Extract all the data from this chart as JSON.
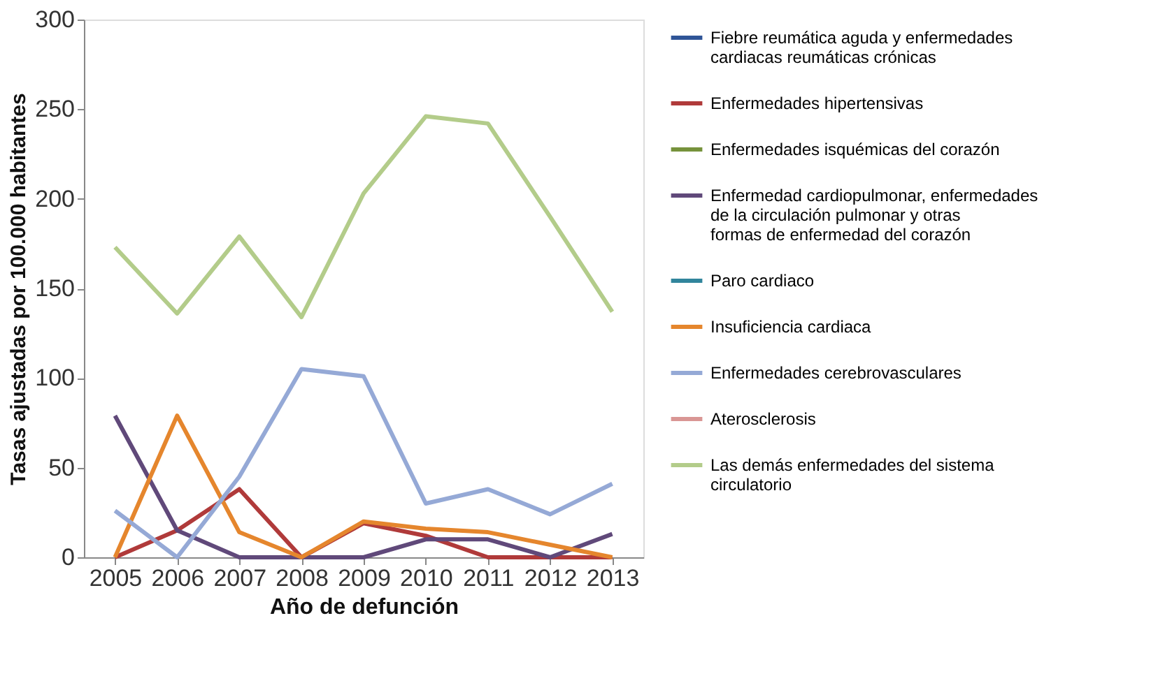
{
  "chart_data": {
    "type": "line",
    "xlabel": "Año de defunción",
    "ylabel": "Tasas ajustadas por 100.000 habitantes",
    "categories": [
      "2005",
      "2006",
      "2007",
      "2008",
      "2009",
      "2010",
      "2011",
      "2012",
      "2013"
    ],
    "ylim": [
      0,
      300
    ],
    "yticks": [
      0,
      50,
      100,
      150,
      200,
      250,
      300
    ],
    "grid": false,
    "legend": "right",
    "series": [
      {
        "name": "Fiebre reumática aguda y enfermedades cardiacas reumáticas crónicas",
        "color": "#2f5597",
        "values": [
          null,
          null,
          null,
          null,
          null,
          null,
          null,
          null,
          null
        ]
      },
      {
        "name": "Enfermedades hipertensivas",
        "color": "#b03a3a",
        "values": [
          0,
          15,
          38,
          0,
          19,
          12,
          0,
          0,
          0
        ]
      },
      {
        "name": "Enfermedades isquémicas del corazón",
        "color": "#76923c",
        "values": [
          null,
          null,
          null,
          null,
          null,
          null,
          null,
          null,
          null
        ]
      },
      {
        "name": "Enfermedad cardiopulmonar, enfermedades de la circulación pulmonar y otras formas de enfermedad del corazón",
        "color": "#60497a",
        "values": [
          79,
          15,
          0,
          0,
          0,
          10,
          10,
          0,
          13
        ]
      },
      {
        "name": "Paro cardiaco",
        "color": "#31859c",
        "values": [
          null,
          null,
          null,
          null,
          null,
          null,
          null,
          null,
          null
        ]
      },
      {
        "name": "Insuficiencia cardiaca",
        "color": "#e5862d",
        "values": [
          0,
          79,
          14,
          0,
          20,
          16,
          14,
          7,
          0
        ]
      },
      {
        "name": "Enfermedades cerebrovasculares",
        "color": "#95a9d6",
        "values": [
          26,
          0,
          45,
          105,
          101,
          30,
          38,
          24,
          41
        ]
      },
      {
        "name": "Aterosclerosis",
        "color": "#d99694",
        "values": [
          null,
          null,
          null,
          null,
          null,
          null,
          null,
          null,
          null
        ]
      },
      {
        "name": "Las demás enfermedades del sistema circulatorio",
        "color": "#b3cc8a",
        "values": [
          173,
          136,
          179,
          134,
          203,
          246,
          242,
          190,
          137
        ]
      }
    ]
  }
}
